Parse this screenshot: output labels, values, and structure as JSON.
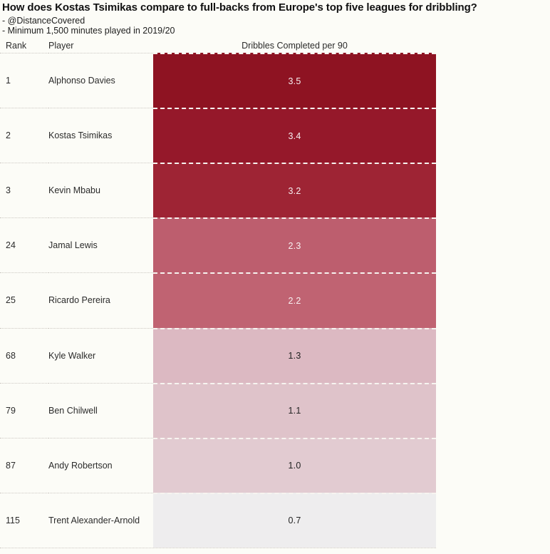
{
  "header": {
    "title": "How does Kostas Tsimikas compare to full-backs from Europe's top five leagues for dribbling?",
    "subtitle_line_1": "- @DistanceCovered",
    "subtitle_line_2": "- Minimum 1,500 minutes played in 2019/20"
  },
  "columns": {
    "rank_label": "Rank",
    "player_label": "Player",
    "metric_label": "Dribbles Completed per 90"
  },
  "colors": {
    "background": "#fcfcf7",
    "separator_dotted": "#ccc8c2",
    "separator_dashed_on_bar": "#f7f4f0",
    "text_dark": "#2b2b2b",
    "value_text_light": "#f6eef0"
  },
  "chart_data": {
    "type": "heatmap",
    "title": "How does Kostas Tsimikas compare to full-backs from Europe's top five leagues for dribbling?",
    "subtitle": [
      "- @DistanceCovered",
      "- Minimum 1,500 minutes played in 2019/20"
    ],
    "columns": [
      "Rank",
      "Player",
      "Dribbles Completed per 90"
    ],
    "value_range": [
      0.7,
      3.5
    ],
    "legend_position": "none",
    "grid": "dotted-row-separators",
    "rows": [
      {
        "rank": "1",
        "player": "Alphonso Davies",
        "value": "3.5",
        "bar_color": "#8e1322",
        "value_color": "#f6eef0"
      },
      {
        "rank": "2",
        "player": "Kostas Tsimikas",
        "value": "3.4",
        "bar_color": "#95182a",
        "value_color": "#f6eef0"
      },
      {
        "rank": "3",
        "player": "Kevin Mbabu",
        "value": "3.2",
        "bar_color": "#9e2434",
        "value_color": "#f6eef0"
      },
      {
        "rank": "24",
        "player": "Jamal Lewis",
        "value": "2.3",
        "bar_color": "#bd5e6e",
        "value_color": "#f8f0f1"
      },
      {
        "rank": "25",
        "player": "Ricardo Pereira",
        "value": "2.2",
        "bar_color": "#c06372",
        "value_color": "#f8f0f1"
      },
      {
        "rank": "68",
        "player": "Kyle Walker",
        "value": "1.3",
        "bar_color": "#dcb9c2",
        "value_color": "#232323"
      },
      {
        "rank": "79",
        "player": "Ben Chilwell",
        "value": "1.1",
        "bar_color": "#dfc3ca",
        "value_color": "#232323"
      },
      {
        "rank": "87",
        "player": "Andy Robertson",
        "value": "1.0",
        "bar_color": "#e2cbd1",
        "value_color": "#232323"
      },
      {
        "rank": "115",
        "player": "Trent Alexander-Arnold",
        "value": "0.7",
        "bar_color": "#eeedee",
        "value_color": "#232323"
      }
    ]
  }
}
